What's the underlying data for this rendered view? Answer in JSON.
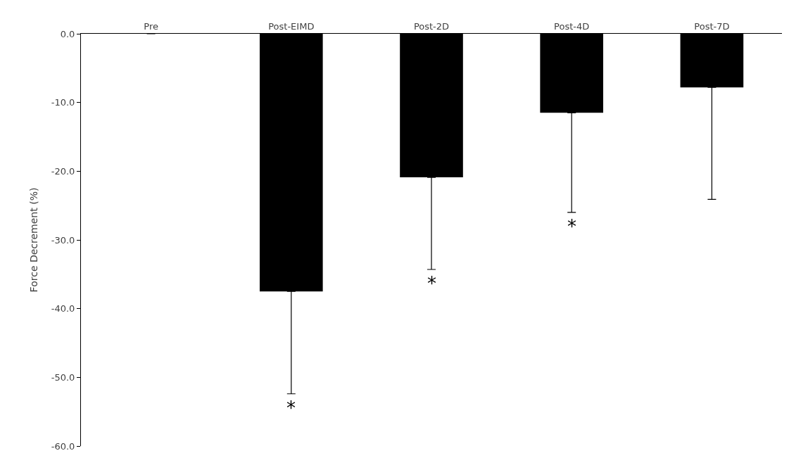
{
  "chart_data": {
    "type": "bar",
    "ylabel": "Force Decrement (%)",
    "categories": [
      "Pre",
      "Post-EIMD",
      "Post-2D",
      "Post-4D",
      "Post-7D"
    ],
    "values": [
      0,
      -37.5,
      -20.9,
      -11.5,
      -7.8
    ],
    "color": "#000000",
    "errors": [
      null,
      [
        -52.4,
        -37.5
      ],
      [
        -34.3,
        -20.9
      ],
      [
        -26.0,
        -11.5
      ],
      [
        -24.1,
        -7.8
      ]
    ],
    "ylim": [
      -60,
      0
    ],
    "yticks": [
      {
        "value": -60,
        "label": "-60.0"
      },
      {
        "value": -50,
        "label": "-50.0"
      },
      {
        "value": -40,
        "label": "-40.0"
      },
      {
        "value": -30,
        "label": "-30.0"
      },
      {
        "value": -20,
        "label": "-20.0"
      },
      {
        "value": -10,
        "label": "-10.0"
      },
      {
        "value": 0,
        "label": "0.0"
      }
    ],
    "annotations": [
      "*",
      "*",
      "*"
    ]
  }
}
